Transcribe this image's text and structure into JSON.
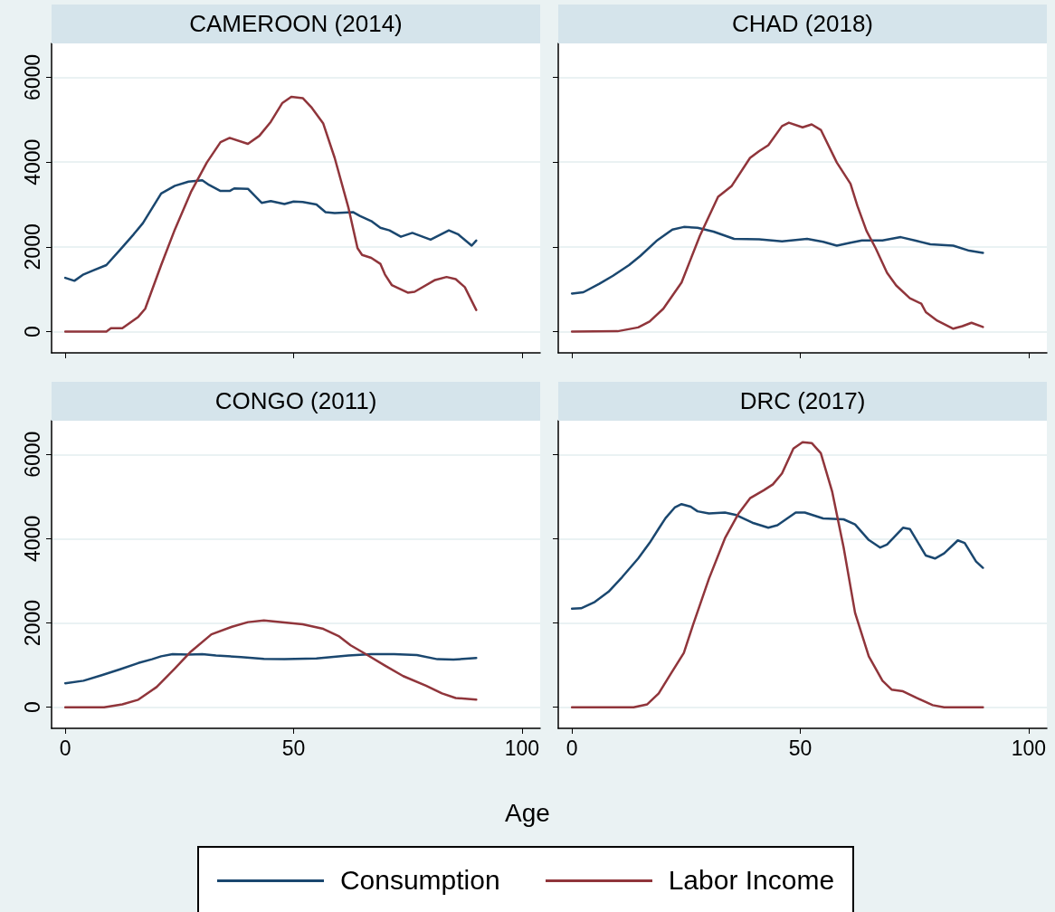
{
  "chart_data": [
    {
      "type": "line",
      "title": "CAMEROON (2014)",
      "legend": "bottom",
      "xlim": [
        -3,
        104
      ],
      "ylim": [
        -500,
        6800
      ],
      "xticks": [
        0,
        50,
        100
      ],
      "yticks": [
        0,
        2000,
        4000,
        6000
      ],
      "grid": "y",
      "tick_labels": "y",
      "series": [
        {
          "name": "Consumption",
          "color": "#1a476f",
          "x": [
            0,
            2,
            4,
            6,
            9,
            12,
            15,
            17,
            21,
            22.5,
            24,
            27,
            30,
            31.5,
            34,
            36,
            37,
            40,
            43,
            45,
            48,
            50,
            52,
            55,
            57,
            59,
            63,
            64.5,
            67,
            69,
            71,
            73.5,
            76,
            80,
            84,
            86,
            89,
            90
          ],
          "values": [
            1270,
            1200,
            1350,
            1440,
            1570,
            1930,
            2300,
            2560,
            3260,
            3350,
            3440,
            3540,
            3570,
            3460,
            3320,
            3320,
            3380,
            3370,
            3040,
            3080,
            3010,
            3070,
            3060,
            3000,
            2820,
            2800,
            2820,
            2730,
            2610,
            2450,
            2390,
            2240,
            2330,
            2170,
            2390,
            2300,
            2030,
            2150
          ]
        },
        {
          "name": "Labor Income",
          "color": "#90353b",
          "x": [
            0,
            9,
            10,
            12.5,
            16,
            17.5,
            21,
            24,
            27.5,
            31,
            34,
            36,
            40,
            42.5,
            45,
            47.5,
            49.5,
            52,
            54,
            56.5,
            59,
            62,
            64,
            65,
            67,
            69,
            70,
            71.5,
            75,
            76.5,
            81,
            83.5,
            85.5,
            87.5,
            90
          ],
          "values": [
            0,
            0,
            80,
            80,
            350,
            540,
            1570,
            2410,
            3290,
            3990,
            4470,
            4570,
            4430,
            4620,
            4950,
            5390,
            5540,
            5510,
            5280,
            4910,
            4100,
            2930,
            1970,
            1810,
            1740,
            1600,
            1350,
            1100,
            920,
            940,
            1220,
            1290,
            1240,
            1050,
            510
          ]
        }
      ]
    },
    {
      "type": "line",
      "title": "CHAD (2018)",
      "xlim": [
        -3,
        104
      ],
      "ylim": [
        -500,
        6800
      ],
      "xticks": [
        0,
        50,
        100
      ],
      "yticks": [
        0,
        2000,
        4000,
        6000
      ],
      "grid": "y",
      "tick_labels": false,
      "series": [
        {
          "color": "#1a476f",
          "x": [
            0,
            2.5,
            6,
            9,
            12.5,
            15,
            18.5,
            22,
            24.5,
            27.5,
            31,
            35.5,
            41,
            46,
            51.5,
            55,
            58,
            61,
            63.5,
            68,
            72,
            75.5,
            78.5,
            83.5,
            87,
            90
          ],
          "values": [
            900,
            930,
            1130,
            1320,
            1570,
            1790,
            2140,
            2410,
            2470,
            2450,
            2360,
            2190,
            2180,
            2130,
            2190,
            2120,
            2030,
            2100,
            2150,
            2150,
            2230,
            2140,
            2060,
            2030,
            1910,
            1860
          ]
        },
        {
          "color": "#90353b",
          "x": [
            0,
            10,
            14.5,
            17,
            20,
            24,
            28,
            32,
            35,
            39,
            41,
            43,
            46,
            47.5,
            50.5,
            52.5,
            54.5,
            58,
            61,
            62.5,
            64.5,
            66.5,
            69,
            71,
            74,
            76.5,
            77.5,
            80,
            83.5,
            85.5,
            87.5,
            90
          ],
          "values": [
            0,
            10,
            100,
            240,
            540,
            1160,
            2260,
            3180,
            3440,
            4100,
            4260,
            4400,
            4850,
            4930,
            4820,
            4890,
            4760,
            3990,
            3490,
            2970,
            2380,
            1970,
            1390,
            1090,
            790,
            660,
            460,
            260,
            70,
            130,
            210,
            110
          ]
        }
      ]
    },
    {
      "type": "line",
      "title": "CONGO (2011)",
      "xlim": [
        -3,
        104
      ],
      "ylim": [
        -500,
        6800
      ],
      "xticks": [
        0,
        50,
        100
      ],
      "yticks": [
        0,
        2000,
        4000,
        6000
      ],
      "grid": "y",
      "series": [
        {
          "color": "#1a476f",
          "x": [
            0,
            4,
            8,
            12,
            16,
            19,
            21,
            23.5,
            27,
            30,
            33,
            38.5,
            43.5,
            48,
            55,
            62,
            67,
            72,
            77,
            81.5,
            85,
            90
          ],
          "values": [
            570,
            630,
            760,
            900,
            1050,
            1140,
            1210,
            1260,
            1250,
            1260,
            1230,
            1190,
            1150,
            1140,
            1160,
            1230,
            1260,
            1260,
            1240,
            1140,
            1130,
            1170
          ]
        },
        {
          "color": "#90353b",
          "x": [
            0,
            8.5,
            12.5,
            16,
            20,
            24,
            27.5,
            32,
            36.5,
            40,
            43.5,
            48,
            52,
            56.5,
            60,
            62.5,
            66,
            70,
            74,
            79,
            82.5,
            85.5,
            90
          ],
          "values": [
            0,
            0,
            70,
            180,
            480,
            920,
            1320,
            1730,
            1910,
            2020,
            2060,
            2010,
            1970,
            1860,
            1680,
            1470,
            1250,
            990,
            740,
            510,
            330,
            220,
            180
          ]
        }
      ]
    },
    {
      "type": "line",
      "title": "DRC (2017)",
      "xlabel": "Age",
      "xlim": [
        -3,
        104
      ],
      "ylim": [
        -500,
        6800
      ],
      "xticks": [
        0,
        50,
        100
      ],
      "yticks": [
        0,
        2000,
        4000,
        6000
      ],
      "grid": "y",
      "tick_labels": "x",
      "series": [
        {
          "color": "#1a476f",
          "x": [
            0,
            2,
            5,
            8,
            11,
            14.5,
            17,
            19,
            20.5,
            22.5,
            24,
            26,
            27.5,
            30,
            33.5,
            36,
            39.5,
            43,
            45,
            49,
            51,
            55,
            59.5,
            62,
            65,
            67.5,
            69,
            72.5,
            74,
            77.5,
            79.5,
            81.5,
            84.5,
            86,
            88.5,
            90
          ],
          "values": [
            2340,
            2350,
            2500,
            2740,
            3090,
            3530,
            3900,
            4240,
            4490,
            4740,
            4820,
            4760,
            4650,
            4600,
            4620,
            4560,
            4380,
            4260,
            4320,
            4620,
            4620,
            4480,
            4460,
            4340,
            3970,
            3790,
            3860,
            4260,
            4230,
            3600,
            3530,
            3650,
            3960,
            3900,
            3460,
            3310
          ]
        },
        {
          "color": "#90353b",
          "x": [
            0,
            13.5,
            16.5,
            19,
            21.5,
            24.5,
            26.5,
            30,
            33.5,
            36.5,
            39,
            42,
            44,
            46,
            48.5,
            50.5,
            52.5,
            54.5,
            57,
            59.5,
            62,
            65,
            68,
            70,
            72.5,
            75.5,
            79,
            81.5,
            90
          ],
          "values": [
            0,
            0,
            70,
            330,
            770,
            1290,
            1950,
            3050,
            4010,
            4600,
            4960,
            5150,
            5290,
            5550,
            6140,
            6290,
            6270,
            6030,
            5110,
            3790,
            2240,
            1210,
            630,
            420,
            380,
            220,
            50,
            0,
            0
          ]
        }
      ]
    }
  ]
}
